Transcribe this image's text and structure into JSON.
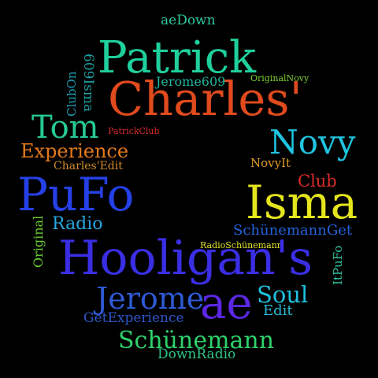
{
  "words": [
    {
      "text": "aeDown",
      "color": "#2ec99b"
    },
    {
      "text": "Patrick",
      "color": "#1fcf9c"
    },
    {
      "text": "Charles'",
      "color": "#e04a1d"
    },
    {
      "text": "Jerome609",
      "color": "#1fb59e"
    },
    {
      "text": "OriginalNovy",
      "color": "#7fd32e"
    },
    {
      "text": "ClubOn",
      "color": "#1e9db6"
    },
    {
      "text": "609Isma",
      "color": "#1f9ea3"
    },
    {
      "text": "Tom",
      "color": "#27c995"
    },
    {
      "text": "PatrickClub",
      "color": "#d72b2b"
    },
    {
      "text": "Novy",
      "color": "#1fc4df"
    },
    {
      "text": "Experience",
      "color": "#e57a1c"
    },
    {
      "text": "Charles'Edit",
      "color": "#d08b2c"
    },
    {
      "text": "NovyIt",
      "color": "#e09a20"
    },
    {
      "text": "Club",
      "color": "#d82c2a"
    },
    {
      "text": "PuFo",
      "color": "#2540e6"
    },
    {
      "text": "Isma",
      "color": "#e4e51d"
    },
    {
      "text": "Radio",
      "color": "#27a6e0"
    },
    {
      "text": "Original",
      "color": "#69cf34"
    },
    {
      "text": "SchünemannGet",
      "color": "#2463da"
    },
    {
      "text": "RadioSchünemann",
      "color": "#e2e22a"
    },
    {
      "text": "Hooligan's",
      "color": "#3a2ee4"
    },
    {
      "text": "ItPuFo",
      "color": "#2fc4a2"
    },
    {
      "text": "Jerome",
      "color": "#2e5ad6"
    },
    {
      "text": "ae",
      "color": "#5a27e2"
    },
    {
      "text": "Soul",
      "color": "#1fc1e0"
    },
    {
      "text": "Edit",
      "color": "#28b9d2"
    },
    {
      "text": "GetExperience",
      "color": "#2e56c8"
    },
    {
      "text": "Schünemann",
      "color": "#2ed16b"
    },
    {
      "text": "DownRadio",
      "color": "#2fc487"
    }
  ]
}
